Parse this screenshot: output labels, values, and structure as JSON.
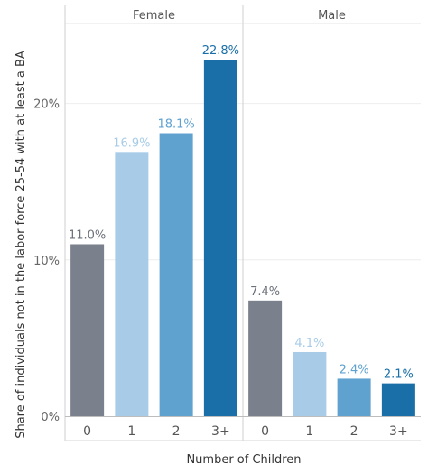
{
  "chart_data": {
    "type": "bar",
    "ylabel": "Share of individuals not in the labor force 25-54 with at least a BA",
    "xlabel": "Number of Children",
    "ylim": [
      0,
      25
    ],
    "yticks": [
      {
        "value": 0,
        "label": "0%"
      },
      {
        "value": 10,
        "label": "10%"
      },
      {
        "value": 20,
        "label": "20%"
      }
    ],
    "grid": true,
    "categories": [
      "0",
      "1",
      "2",
      "3+"
    ],
    "category_colors": [
      "#7b818c",
      "#a8cce8",
      "#5fa2d0",
      "#1a6fa8"
    ],
    "label_colors": [
      "#6b7079",
      "#a8cce8",
      "#5fa2d0",
      "#1a6fa8"
    ],
    "panels": [
      {
        "name": "Female",
        "values": [
          11.0,
          16.9,
          18.1,
          22.8
        ],
        "labels": [
          "11.0%",
          "16.9%",
          "18.1%",
          "22.8%"
        ]
      },
      {
        "name": "Male",
        "values": [
          7.4,
          4.1,
          2.4,
          2.1
        ],
        "labels": [
          "7.4%",
          "4.1%",
          "2.4%",
          "2.1%"
        ]
      }
    ]
  }
}
